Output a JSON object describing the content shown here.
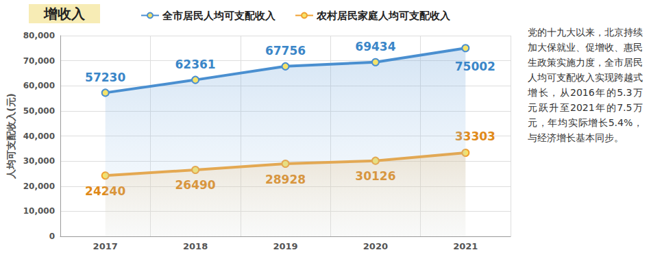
{
  "chart_data": {
    "type": "line",
    "title": "增收入",
    "y_label": "人均可支配收入(元)",
    "categories": [
      "2017",
      "2018",
      "2019",
      "2020",
      "2021"
    ],
    "series": [
      {
        "name": "全市居民人均可支配收入",
        "color": "#4a8fd0",
        "values": [
          57230,
          62361,
          67756,
          69434,
          75002
        ]
      },
      {
        "name": "农村居民家庭人均可支配收入",
        "color": "#f0a030",
        "values": [
          24240,
          26490,
          28928,
          30126,
          33303
        ]
      }
    ],
    "ylim": [
      0,
      80000
    ],
    "yticks": [
      0,
      10000,
      20000,
      30000,
      40000,
      50000,
      60000,
      70000,
      80000
    ],
    "grid": true,
    "legend": "top",
    "data_labels": true,
    "marker": "circle",
    "annotation": "党的十九大以来，北京持续加大保就业、促增收、惠民生政策实施力度，全市居民人均可支配收入实现跨越式增长，从2016年的5.3万元跃升至2021年的7.5万元，年均实际增长5.4%，与经济增长基本同步。"
  }
}
